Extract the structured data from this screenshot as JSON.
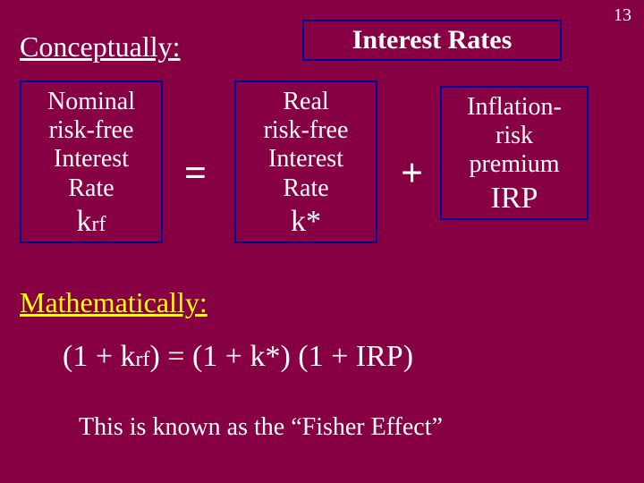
{
  "page_number": "13",
  "title": "Interest Rates",
  "heading_conceptually": "Conceptually:",
  "operators": {
    "equals": "=",
    "plus": "+"
  },
  "terms": {
    "nominal": {
      "line1": "Nominal",
      "line2": "risk-free",
      "line3": "Interest",
      "line4": "Rate",
      "symbol_main": "k",
      "symbol_sub": "rf"
    },
    "real": {
      "line1": "Real",
      "line2": "risk-free",
      "line3": "Interest",
      "line4": "Rate",
      "symbol": "k*"
    },
    "irp": {
      "line1": "Inflation-",
      "line2": "risk",
      "line3": "premium",
      "symbol": "IRP"
    }
  },
  "heading_mathematically": "Mathematically:",
  "formula": {
    "p1": "(1 + k",
    "sub1": "rf",
    "p2": ") = (1 + k*) (1 + IRP)"
  },
  "fisher": "This is known as the “Fisher Effect”",
  "colors": {
    "background": "#880044",
    "text_white": "#ffffff",
    "text_yellow": "#ffff00",
    "border_navy": "#000099"
  }
}
